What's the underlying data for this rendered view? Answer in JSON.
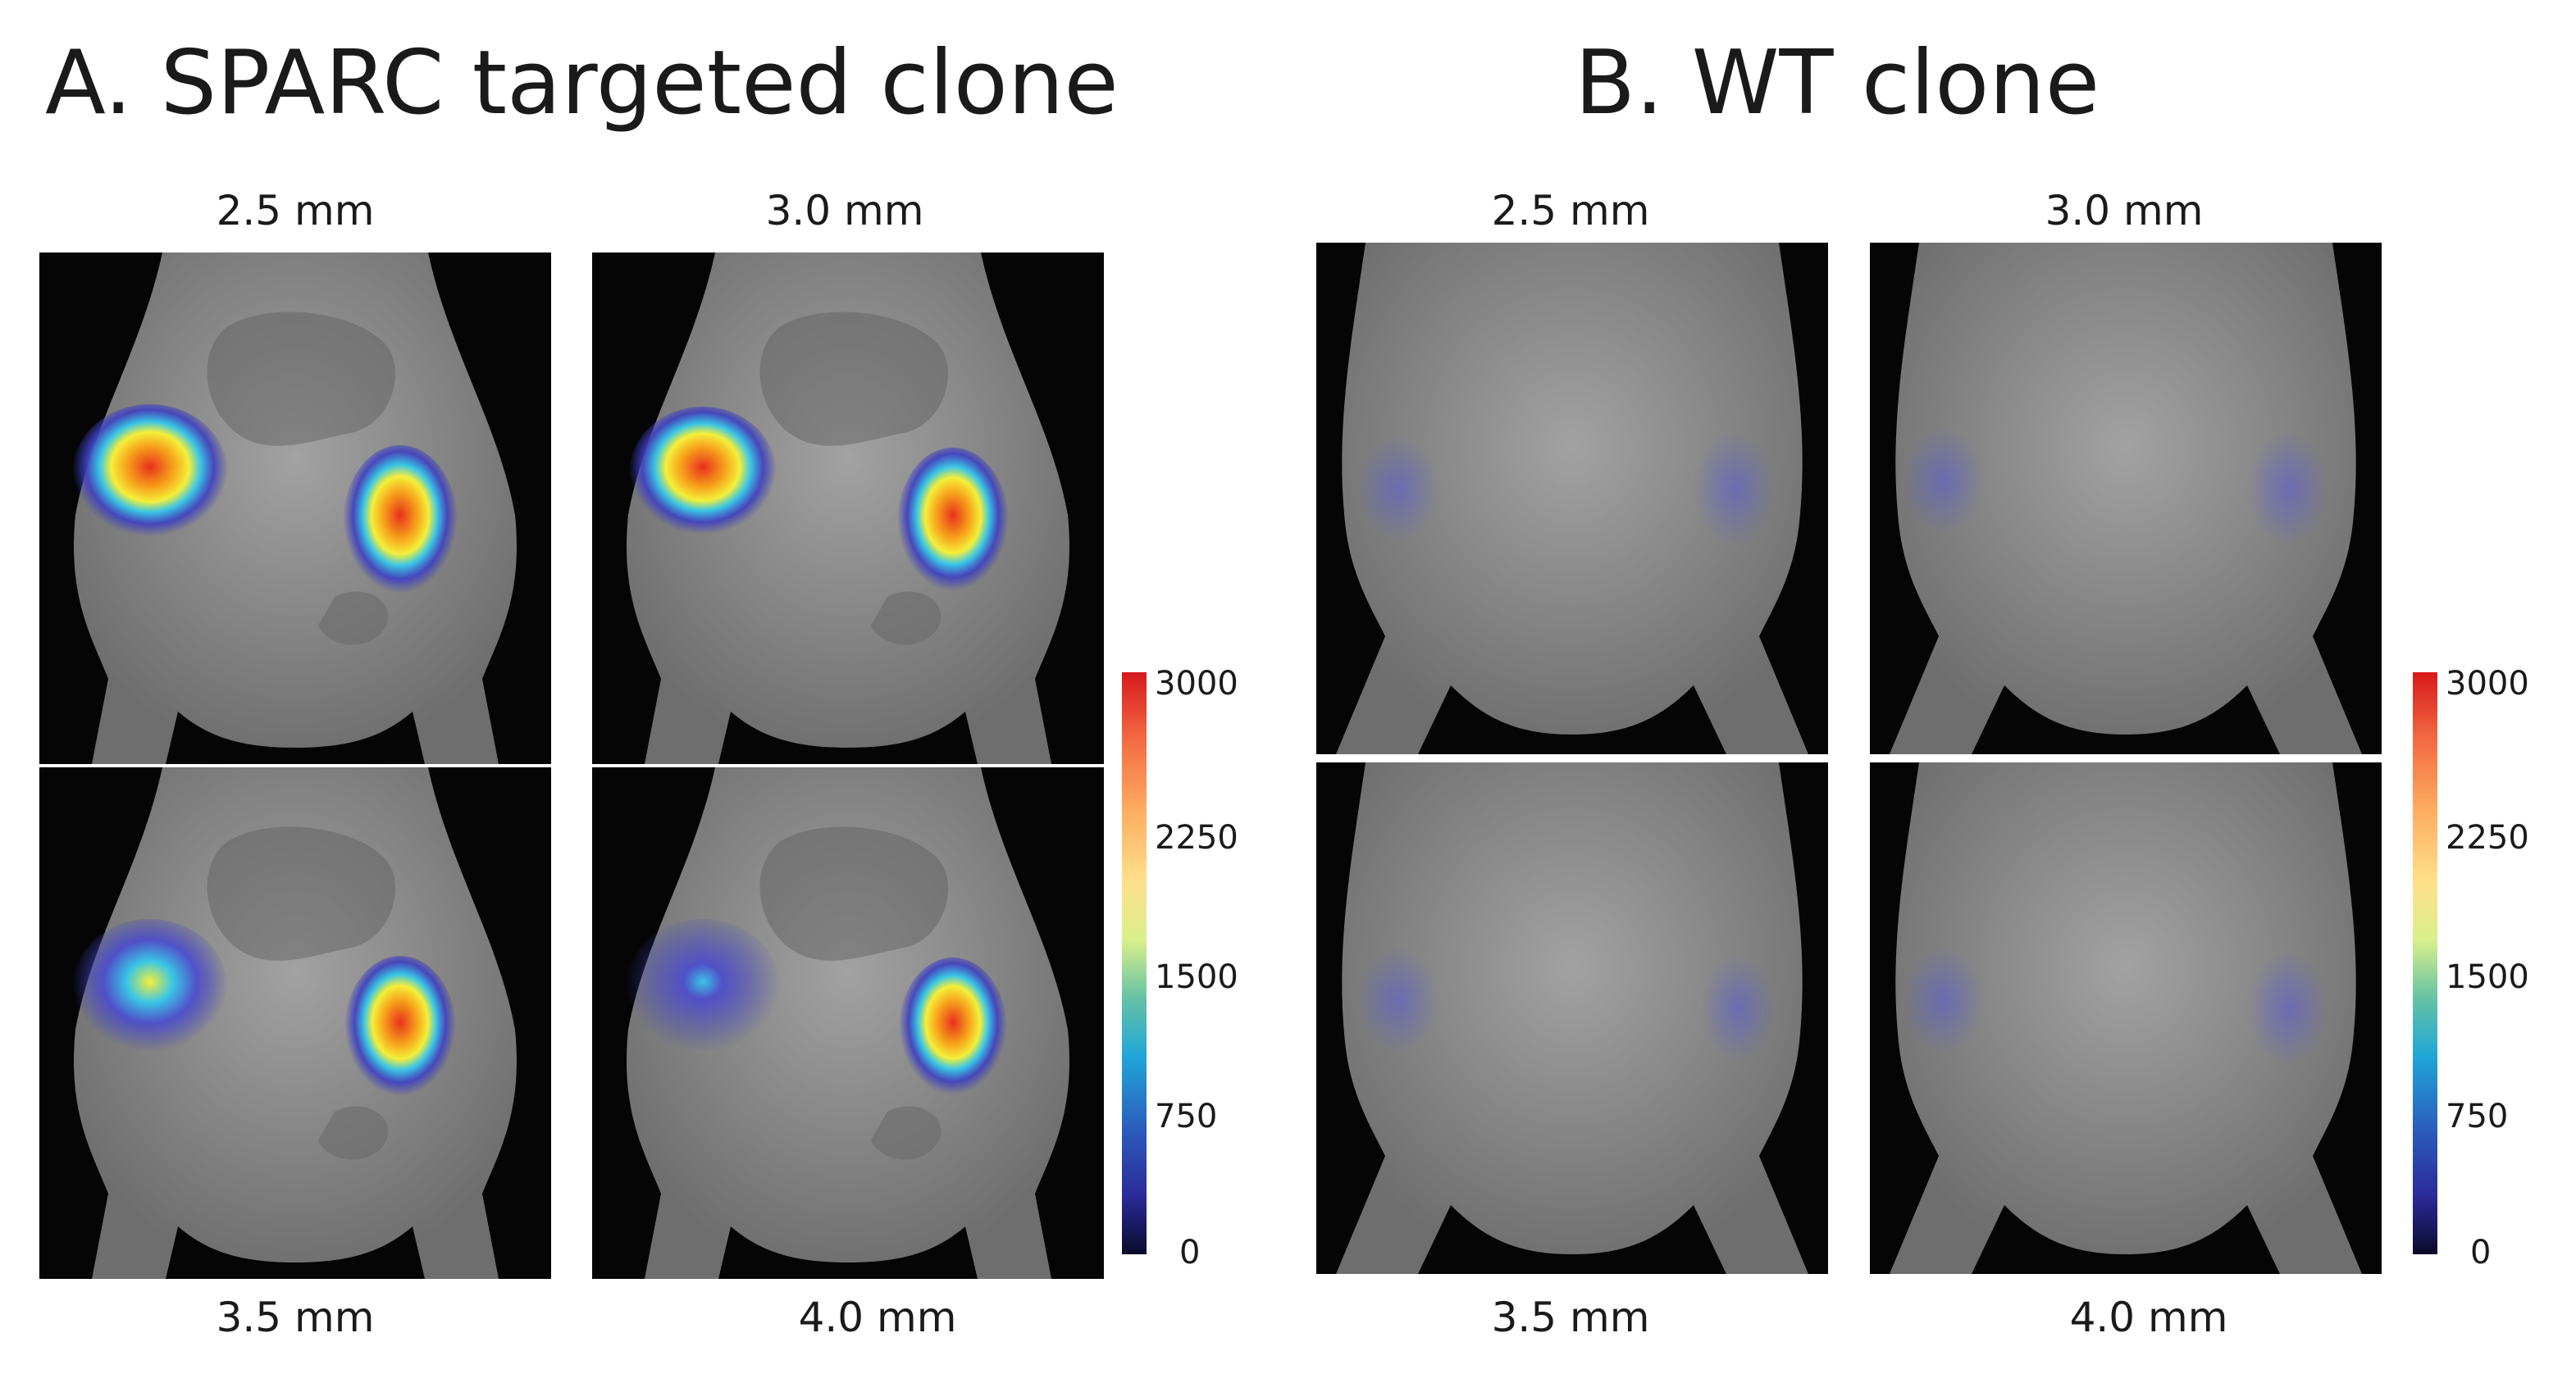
{
  "panel_a": {
    "title": "A. SPARC targeted clone",
    "depths": {
      "top_left": "2.5 mm",
      "top_right": "3.0 mm",
      "bottom_left": "3.5 mm",
      "bottom_right": "4.0 mm"
    },
    "colorbar": {
      "ticks": [
        "3000",
        "2250",
        "1500",
        "750",
        "0"
      ]
    }
  },
  "panel_b": {
    "title": "B. WT clone",
    "depths": {
      "top_left": "2.5 mm",
      "top_right": "3.0 mm",
      "bottom_left": "3.5 mm",
      "bottom_right": "4.0 mm"
    },
    "colorbar": {
      "ticks": [
        "3000",
        "2250",
        "1500",
        "750",
        "0"
      ]
    }
  },
  "colors": {
    "background": "#ffffff",
    "image_background": "#050505",
    "mouse_body": "#8e8e8e",
    "signal_hot": "#e8301c",
    "signal_low": "#3f3fc0"
  }
}
